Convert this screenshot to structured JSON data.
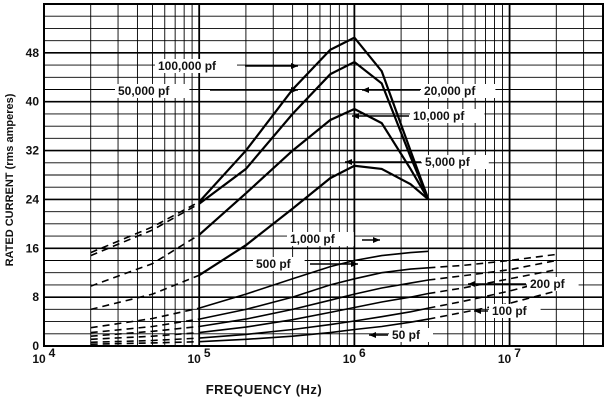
{
  "chart_data": {
    "type": "line",
    "xlabel": "FREQUENCY (Hz)",
    "ylabel": "RATED CURRENT (rms amperes)",
    "xscale": "log",
    "xlim": [
      10000,
      40000000
    ],
    "ylim": [
      0,
      56
    ],
    "grid": true,
    "x_ticks": [
      10000,
      100000,
      1000000,
      10000000
    ],
    "x_tick_labels": [
      "10",
      "10",
      "10",
      "10"
    ],
    "x_tick_exponents": [
      "4",
      "5",
      "6",
      "7"
    ],
    "y_ticks": [
      0,
      8,
      16,
      24,
      32,
      40,
      48
    ],
    "y_tick_labels": [
      "0",
      "8",
      "16",
      "24",
      "32",
      "40",
      "48"
    ],
    "series": [
      {
        "name": "100,000 pf",
        "x": [
          20000,
          50000,
          100000,
          200000,
          400000,
          700000,
          1000000,
          1500000,
          2300000,
          3000000
        ],
        "values": [
          15.3,
          19.5,
          23.6,
          32,
          42,
          48.5,
          50.5,
          45,
          32,
          24
        ]
      },
      {
        "name": "50,000 pf",
        "x": [
          20000,
          50000,
          100000,
          200000,
          400000,
          700000,
          1000000,
          1500000,
          2300000,
          3000000
        ],
        "values": [
          14.8,
          19,
          23.3,
          29,
          38,
          44.5,
          46.5,
          43,
          31,
          24
        ]
      },
      {
        "name": "20,000 pf",
        "x": [
          20000,
          50000,
          100000,
          200000,
          400000,
          700000,
          1000000,
          1500000,
          2300000,
          3000000
        ],
        "values": [
          9.8,
          13.5,
          18.2,
          25,
          32,
          37,
          38.8,
          36.5,
          29,
          24
        ]
      },
      {
        "name": "10,000 pf",
        "x": [
          20000,
          50000,
          100000,
          200000,
          400000,
          700000,
          1000000,
          1500000,
          2300000,
          3000000
        ],
        "values": [
          6,
          8.5,
          11.6,
          16.5,
          22.5,
          27.5,
          29.5,
          29,
          26.5,
          24
        ]
      },
      {
        "name": "5,000 pf",
        "x": [
          20000,
          50000,
          100000,
          200000,
          400000,
          700000,
          1000000,
          1500000,
          2300000,
          3000000
        ],
        "values": [
          3,
          4.5,
          6.2,
          8.5,
          11,
          13,
          14,
          14.8,
          15.3,
          15.5
        ]
      },
      {
        "name": "1,000 pf",
        "x": [
          20000,
          50000,
          100000,
          200000,
          400000,
          700000,
          1000000,
          1500000,
          2300000,
          3000000,
          5000000,
          10000000,
          20000000
        ],
        "values": [
          2.2,
          3.2,
          4.4,
          6,
          8,
          10,
          11,
          12,
          12.6,
          12.8,
          13.2,
          14,
          15
        ]
      },
      {
        "name": "500 pf",
        "x": [
          20000,
          50000,
          100000,
          200000,
          400000,
          700000,
          1000000,
          1500000,
          2300000,
          3000000,
          5000000,
          10000000,
          20000000
        ],
        "values": [
          1.6,
          2.4,
          3.2,
          4.4,
          6,
          7.5,
          8.5,
          9.5,
          10.3,
          10.8,
          11.5,
          12.5,
          14
        ]
      },
      {
        "name": "200 pf",
        "x": [
          20000,
          50000,
          100000,
          200000,
          400000,
          700000,
          1000000,
          1500000,
          2300000,
          3000000,
          5000000,
          10000000,
          20000000
        ],
        "values": [
          1.1,
          1.6,
          2.2,
          3.1,
          4.3,
          5.5,
          6.3,
          7.2,
          8,
          8.6,
          9.5,
          11,
          12.5
        ]
      },
      {
        "name": "100 pf",
        "x": [
          20000,
          50000,
          100000,
          200000,
          400000,
          700000,
          1000000,
          1500000,
          2300000,
          3000000,
          5000000,
          10000000,
          20000000
        ],
        "values": [
          0.6,
          0.9,
          1.3,
          1.9,
          2.7,
          3.5,
          4.1,
          4.8,
          5.6,
          6.2,
          7.3,
          9,
          11
        ]
      },
      {
        "name": "50 pf",
        "x": [
          20000,
          50000,
          100000,
          200000,
          400000,
          700000,
          1000000,
          1500000,
          2300000,
          3000000,
          5000000,
          10000000,
          20000000
        ],
        "values": [
          0.3,
          0.5,
          0.7,
          1.1,
          1.6,
          2.2,
          2.7,
          3.2,
          3.9,
          4.4,
          5.5,
          7,
          9
        ]
      }
    ],
    "annotations": [
      "100,000 pf",
      "50,000 pf",
      "20,000 pf",
      "10,000 pf",
      "5,000 pf",
      "1,000 pf",
      "500 pf",
      "200 pf",
      "100 pf",
      "50 pf"
    ]
  }
}
